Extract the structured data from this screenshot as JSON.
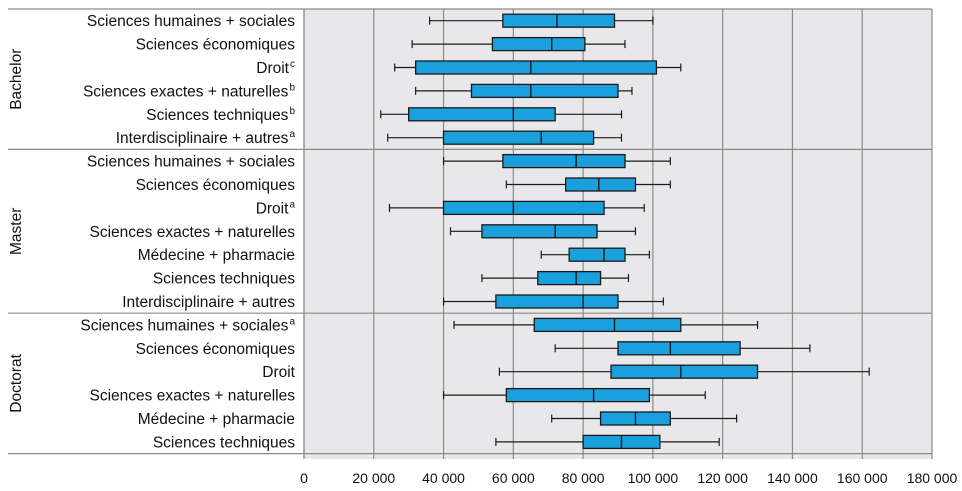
{
  "chart_data": {
    "type": "boxplot",
    "orientation": "horizontal",
    "title": "",
    "xlabel": "",
    "ylabel": "",
    "xlim": [
      0,
      180000
    ],
    "x_ticks": [
      0,
      20000,
      40000,
      60000,
      80000,
      100000,
      120000,
      140000,
      160000,
      180000
    ],
    "x_tick_labels": [
      "0",
      "20 000",
      "40 000",
      "60 000",
      "80 000",
      "100 000",
      "120 000",
      "140 000",
      "160 000",
      "180 000"
    ],
    "grid": true,
    "colors": {
      "box": "#1aa0dc",
      "plot_background": "#e8e8ea",
      "gridline": "#8a8a8a"
    },
    "groups": [
      {
        "label": "Bachelor",
        "rows": [
          {
            "label": "Sciences humaines + sociales",
            "sup": "",
            "whisker_low": 36000,
            "q1": 57000,
            "median": 72500,
            "q3": 89000,
            "whisker_high": 100000
          },
          {
            "label": "Sciences économiques",
            "sup": "",
            "whisker_low": 31000,
            "q1": 54000,
            "median": 71000,
            "q3": 80500,
            "whisker_high": 92000
          },
          {
            "label": "Droit",
            "sup": "c",
            "whisker_low": 26000,
            "q1": 32000,
            "median": 65000,
            "q3": 101000,
            "whisker_high": 108000
          },
          {
            "label": "Sciences exactes + naturelles",
            "sup": "b",
            "whisker_low": 32000,
            "q1": 48000,
            "median": 65000,
            "q3": 90000,
            "whisker_high": 94000
          },
          {
            "label": "Sciences techniques",
            "sup": "b",
            "whisker_low": 22000,
            "q1": 30000,
            "median": 60000,
            "q3": 72000,
            "whisker_high": 91000
          },
          {
            "label": "Interdisciplinaire + autres",
            "sup": "a",
            "whisker_low": 24000,
            "q1": 40000,
            "median": 68000,
            "q3": 83000,
            "whisker_high": 91000
          }
        ]
      },
      {
        "label": "Master",
        "rows": [
          {
            "label": "Sciences humaines + sociales",
            "sup": "",
            "whisker_low": 40000,
            "q1": 57000,
            "median": 78000,
            "q3": 92000,
            "whisker_high": 105000
          },
          {
            "label": "Sciences économiques",
            "sup": "",
            "whisker_low": 58000,
            "q1": 75000,
            "median": 84500,
            "q3": 95000,
            "whisker_high": 105000
          },
          {
            "label": "Droit",
            "sup": "a",
            "whisker_low": 24500,
            "q1": 40000,
            "median": 60000,
            "q3": 86000,
            "whisker_high": 97500
          },
          {
            "label": "Sciences exactes + naturelles",
            "sup": "",
            "whisker_low": 42000,
            "q1": 51000,
            "median": 72000,
            "q3": 84000,
            "whisker_high": 95000
          },
          {
            "label": "Médecine + pharmacie",
            "sup": "",
            "whisker_low": 68000,
            "q1": 76000,
            "median": 86000,
            "q3": 92000,
            "whisker_high": 99000
          },
          {
            "label": "Sciences techniques",
            "sup": "",
            "whisker_low": 51000,
            "q1": 67000,
            "median": 78000,
            "q3": 85000,
            "whisker_high": 93000
          },
          {
            "label": "Interdisciplinaire + autres",
            "sup": "",
            "whisker_low": 40000,
            "q1": 55000,
            "median": 80000,
            "q3": 90000,
            "whisker_high": 103000
          }
        ]
      },
      {
        "label": "Doctorat",
        "rows": [
          {
            "label": "Sciences humaines + sociales",
            "sup": "a",
            "whisker_low": 43000,
            "q1": 66000,
            "median": 89000,
            "q3": 108000,
            "whisker_high": 130000
          },
          {
            "label": "Sciences économiques",
            "sup": "",
            "whisker_low": 72000,
            "q1": 90000,
            "median": 105000,
            "q3": 125000,
            "whisker_high": 145000
          },
          {
            "label": "Droit",
            "sup": "",
            "whisker_low": 56000,
            "q1": 88000,
            "median": 108000,
            "q3": 130000,
            "whisker_high": 162000
          },
          {
            "label": "Sciences exactes + naturelles",
            "sup": "",
            "whisker_low": 40000,
            "q1": 58000,
            "median": 83000,
            "q3": 99000,
            "whisker_high": 115000
          },
          {
            "label": "Médecine + pharmacie",
            "sup": "",
            "whisker_low": 71000,
            "q1": 85000,
            "median": 95000,
            "q3": 105000,
            "whisker_high": 124000
          },
          {
            "label": "Sciences techniques",
            "sup": "",
            "whisker_low": 55000,
            "q1": 80000,
            "median": 91000,
            "q3": 102000,
            "whisker_high": 119000
          }
        ]
      }
    ]
  }
}
